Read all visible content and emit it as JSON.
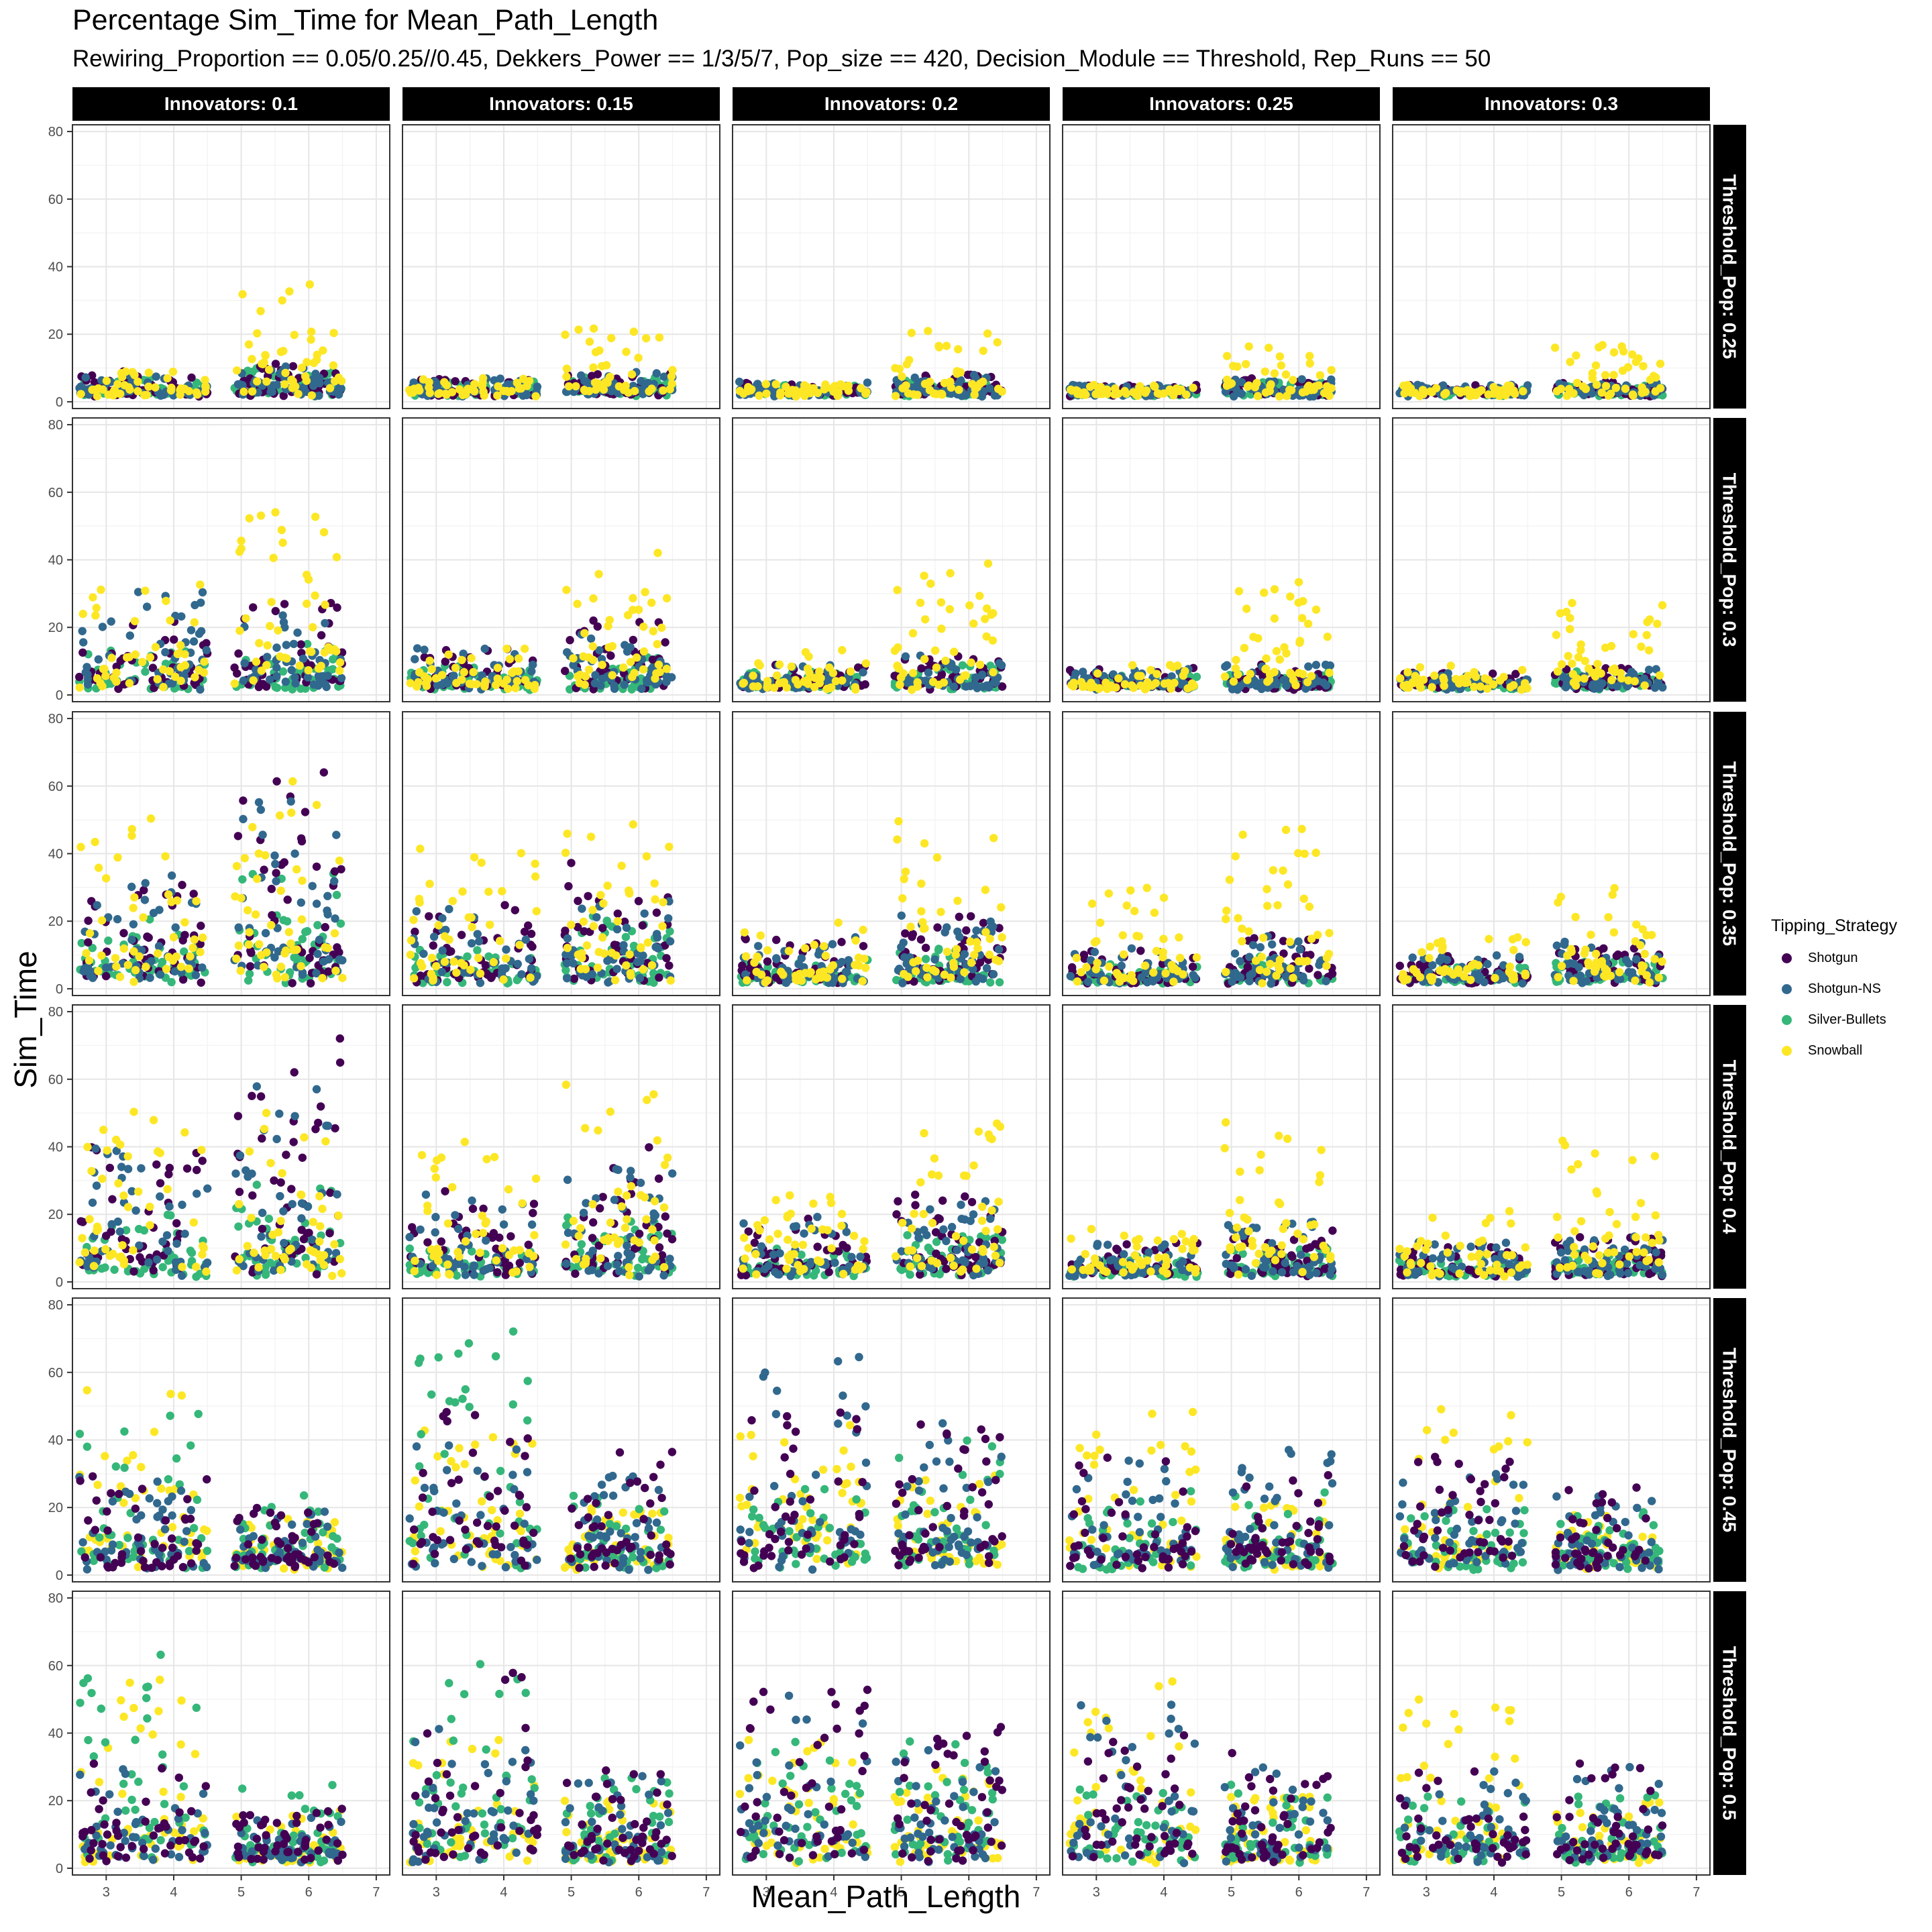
{
  "chart_data": {
    "type": "scatter",
    "title": "Percentage Sim_Time for Mean_Path_Length",
    "subtitle": "Rewiring_Proportion == 0.05/0.25//0.45, Dekkers_Power == 1/3/5/7, Pop_size == 420, Decision_Module == Threshold, Rep_Runs == 50",
    "xlabel": "Mean_Path_Length",
    "ylabel": "Sim_Time",
    "xlim": [
      2.5,
      7.2
    ],
    "ylim": [
      -2,
      82
    ],
    "x_ticks": [
      3,
      4,
      5,
      6,
      7
    ],
    "y_ticks": [
      0,
      20,
      40,
      60,
      80
    ],
    "grid": true,
    "legend": {
      "title": "Tipping_Strategy",
      "position": "right",
      "entries": [
        {
          "name": "Shotgun",
          "color": "#440154"
        },
        {
          "name": "Shotgun-NS",
          "color": "#31688e"
        },
        {
          "name": "Silver-Bullets",
          "color": "#35b779"
        },
        {
          "name": "Snowball",
          "color": "#fde725"
        }
      ]
    },
    "facet_columns": [
      "Innovators: 0.1",
      "Innovators: 0.15",
      "Innovators: 0.2",
      "Innovators: 0.25",
      "Innovators: 0.3"
    ],
    "facet_rows": [
      "Threshold_Pop: 0.25",
      "Threshold_Pop: 0.3",
      "Threshold_Pop: 0.35",
      "Threshold_Pop: 0.4",
      "Threshold_Pop: 0.45",
      "Threshold_Pop: 0.5"
    ],
    "clusters": [
      [
        2.6,
        4.5
      ],
      [
        4.9,
        6.5
      ]
    ],
    "point_pattern_note": "",
    "panels": [
      [
        {
          "series": [
            [
              3.2,
              8
            ],
            [
              5.5,
              9
            ],
            [
              3.6,
              5
            ],
            [
              5.8,
              12
            ]
          ],
          "max": {
            "Shotgun": [
              9,
              12
            ],
            "Shotgun-NS": [
              8,
              11
            ],
            "Silver-Bullets": [
              7,
              10
            ],
            "Snowball": [
              9,
              35
            ]
          }
        },
        {
          "max": {
            "Shotgun": [
              7,
              9
            ],
            "Shotgun-NS": [
              7,
              9
            ],
            "Silver-Bullets": [
              6,
              8
            ],
            "Snowball": [
              7,
              22
            ]
          }
        },
        {
          "max": {
            "Shotgun": [
              6,
              8
            ],
            "Shotgun-NS": [
              6,
              8
            ],
            "Silver-Bullets": [
              5,
              7
            ],
            "Snowball": [
              6,
              21
            ]
          }
        },
        {
          "max": {
            "Shotgun": [
              5,
              7
            ],
            "Shotgun-NS": [
              5,
              7
            ],
            "Silver-Bullets": [
              4,
              6
            ],
            "Snowball": [
              5,
              17
            ]
          }
        },
        {
          "max": {
            "Shotgun": [
              5,
              6
            ],
            "Shotgun-NS": [
              5,
              6
            ],
            "Silver-Bullets": [
              4,
              5
            ],
            "Snowball": [
              5,
              17
            ]
          }
        }
      ],
      [
        {
          "max": {
            "Shotgun": [
              24,
              28
            ],
            "Shotgun-NS": [
              31,
              24
            ],
            "Silver-Bullets": [
              14,
              16
            ],
            "Snowball": [
              34,
              60
            ]
          }
        },
        {
          "max": {
            "Shotgun": [
              14,
              22
            ],
            "Shotgun-NS": [
              14,
              18
            ],
            "Silver-Bullets": [
              9,
              12
            ],
            "Snowball": [
              14,
              46
            ]
          }
        },
        {
          "max": {
            "Shotgun": [
              9,
              12
            ],
            "Shotgun-NS": [
              9,
              12
            ],
            "Silver-Bullets": [
              7,
              9
            ],
            "Snowball": [
              14,
              41
            ]
          }
        },
        {
          "max": {
            "Shotgun": [
              8,
              9
            ],
            "Shotgun-NS": [
              8,
              9
            ],
            "Silver-Bullets": [
              6,
              7
            ],
            "Snowball": [
              9,
              34
            ]
          }
        },
        {
          "max": {
            "Shotgun": [
              7,
              8
            ],
            "Shotgun-NS": [
              7,
              8
            ],
            "Silver-Bullets": [
              5,
              7
            ],
            "Snowball": [
              9,
              31
            ]
          }
        }
      ],
      [
        {
          "max": {
            "Shotgun": [
              35,
              67
            ],
            "Shotgun-NS": [
              34,
              57
            ],
            "Silver-Bullets": [
              22,
              35
            ],
            "Snowball": [
              54,
              63
            ]
          }
        },
        {
          "max": {
            "Shotgun": [
              28,
              38
            ],
            "Shotgun-NS": [
              24,
              35
            ],
            "Silver-Bullets": [
              12,
              22
            ],
            "Snowball": [
              43,
              53
            ]
          }
        },
        {
          "max": {
            "Shotgun": [
              16,
              22
            ],
            "Shotgun-NS": [
              16,
              22
            ],
            "Silver-Bullets": [
              9,
              12
            ],
            "Snowball": [
              20,
              51
            ]
          }
        },
        {
          "max": {
            "Shotgun": [
              12,
              16
            ],
            "Shotgun-NS": [
              12,
              16
            ],
            "Silver-Bullets": [
              8,
              10
            ],
            "Snowball": [
              30,
              48
            ]
          }
        },
        {
          "max": {
            "Shotgun": [
              10,
              14
            ],
            "Shotgun-NS": [
              10,
              14
            ],
            "Silver-Bullets": [
              7,
              9
            ],
            "Snowball": [
              16,
              30
            ]
          }
        }
      ],
      [
        {
          "max": {
            "Shotgun": [
              40,
              78
            ],
            "Shotgun-NS": [
              40,
              61
            ],
            "Silver-Bullets": [
              20,
              30
            ],
            "Snowball": [
              55,
              50
            ]
          }
        },
        {
          "max": {
            "Shotgun": [
              32,
              40
            ],
            "Shotgun-NS": [
              26,
              36
            ],
            "Silver-Bullets": [
              10,
              20
            ],
            "Snowball": [
              44,
              61
            ]
          }
        },
        {
          "max": {
            "Shotgun": [
              20,
              26
            ],
            "Shotgun-NS": [
              20,
              24
            ],
            "Silver-Bullets": [
              10,
              14
            ],
            "Snowball": [
              26,
              49
            ]
          }
        },
        {
          "max": {
            "Shotgun": [
              12,
              18
            ],
            "Shotgun-NS": [
              12,
              18
            ],
            "Silver-Bullets": [
              8,
              10
            ],
            "Snowball": [
              17,
              51
            ]
          }
        },
        {
          "max": {
            "Shotgun": [
              12,
              14
            ],
            "Shotgun-NS": [
              12,
              14
            ],
            "Silver-Bullets": [
              7,
              9
            ],
            "Snowball": [
              21,
              42
            ]
          }
        }
      ],
      [
        {
          "max": {
            "Shotgun": [
              30,
              20
            ],
            "Shotgun-NS": [
              30,
              20
            ],
            "Silver-Bullets": [
              50,
              25
            ],
            "Snowball": [
              57,
              18
            ]
          }
        },
        {
          "max": {
            "Shotgun": [
              54,
              37
            ],
            "Shotgun-NS": [
              40,
              30
            ],
            "Silver-Bullets": [
              73,
              25
            ],
            "Snowball": [
              54,
              20
            ]
          }
        },
        {
          "max": {
            "Shotgun": [
              50,
              45
            ],
            "Shotgun-NS": [
              65,
              45
            ],
            "Silver-Bullets": [
              30,
              40
            ],
            "Snowball": [
              45,
              30
            ]
          }
        },
        {
          "max": {
            "Shotgun": [
              35,
              35
            ],
            "Shotgun-NS": [
              35,
              38
            ],
            "Silver-Bullets": [
              25,
              25
            ],
            "Snowball": [
              52,
              22
            ]
          }
        },
        {
          "max": {
            "Shotgun": [
              35,
              28
            ],
            "Shotgun-NS": [
              30,
              25
            ],
            "Silver-Bullets": [
              20,
              20
            ],
            "Snowball": [
              51,
              20
            ]
          }
        }
      ],
      [
        {
          "max": {
            "Shotgun": [
              32,
              18
            ],
            "Shotgun-NS": [
              32,
              18
            ],
            "Silver-Bullets": [
              68,
              25
            ],
            "Snowball": [
              57,
              18
            ]
          }
        },
        {
          "max": {
            "Shotgun": [
              58,
              30
            ],
            "Shotgun-NS": [
              42,
              28
            ],
            "Silver-Bullets": [
              62,
              28
            ],
            "Snowball": [
              38,
              20
            ]
          }
        },
        {
          "max": {
            "Shotgun": [
              55,
              44
            ],
            "Shotgun-NS": [
              52,
              44
            ],
            "Silver-Bullets": [
              38,
              38
            ],
            "Snowball": [
              40,
              30
            ]
          }
        },
        {
          "max": {
            "Shotgun": [
              40,
              38
            ],
            "Shotgun-NS": [
              49,
              32
            ],
            "Silver-Bullets": [
              25,
              25
            ],
            "Snowball": [
              59,
              22
            ]
          }
        },
        {
          "max": {
            "Shotgun": [
              30,
              33
            ],
            "Shotgun-NS": [
              30,
              30
            ],
            "Silver-Bullets": [
              22,
              22
            ],
            "Snowball": [
              50,
              20
            ]
          }
        }
      ]
    ]
  }
}
